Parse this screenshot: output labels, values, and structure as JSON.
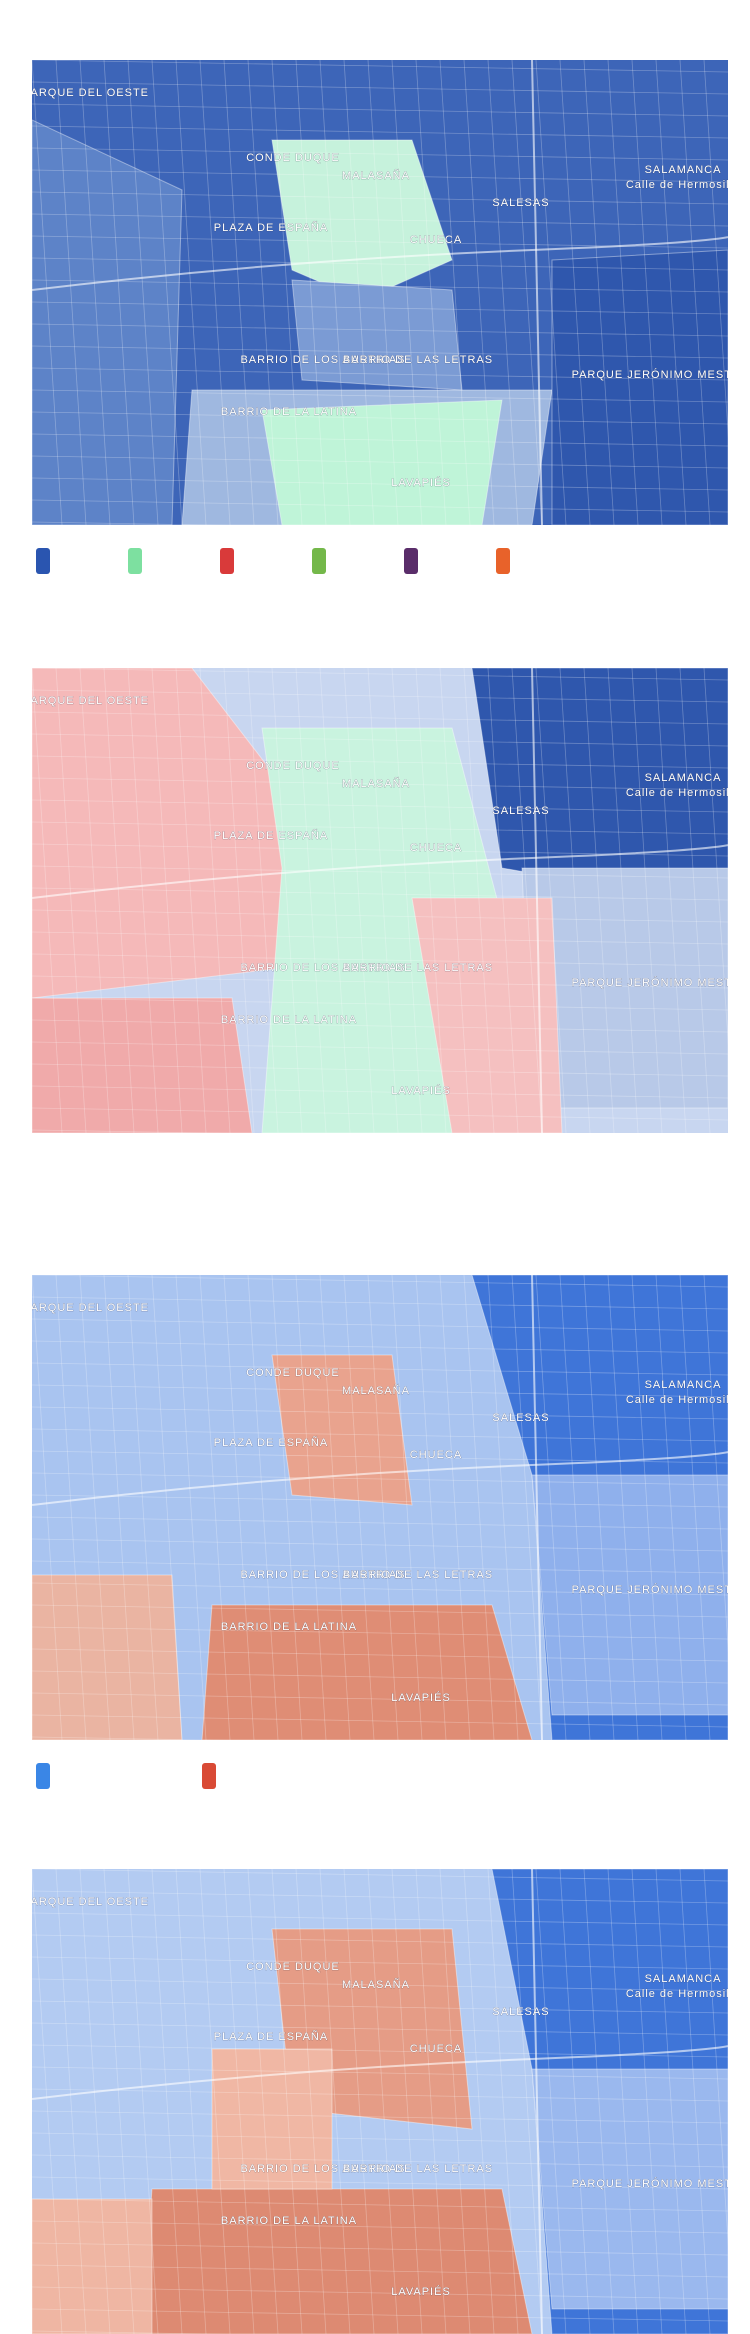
{
  "map_labels": [
    "PARQUE DEL OESTE",
    "CONDE DUQUE",
    "MALASAÑA",
    "PLAZA DE ESPAÑA",
    "CHUECA",
    "SALESAS",
    "SALAMANCA",
    "Calle de Hermosilla",
    "BARRIO DE LOS AUSTRIAS",
    "BARRIO DE LAS LETRAS",
    "BARRIO DE LA LATINA",
    "PARQUE JERÓNIMO MESTRO",
    "LAVAPIÉS"
  ],
  "legends": [
    {
      "colors": [
        "#2a55b0",
        "#7de0a0",
        "#d93a3a",
        "#74b84a",
        "#5a2d6a",
        "#e8622a"
      ]
    },
    {
      "colors": [
        "#3a86e6",
        "#d94a35"
      ]
    }
  ]
}
